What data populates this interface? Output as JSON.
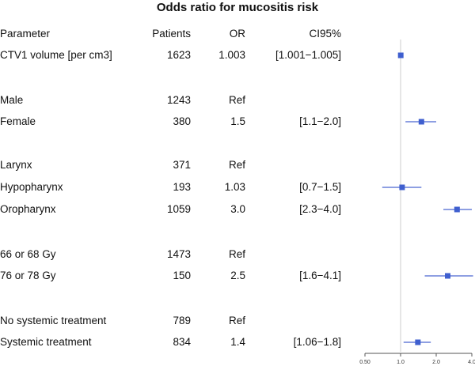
{
  "chart_data": {
    "type": "forest",
    "title": "Odds ratio for mucositis risk",
    "columns": [
      "Parameter",
      "Patients",
      "OR",
      "CI95%"
    ],
    "rows": [
      {
        "parameter": "CTV1 volume [per cm3]",
        "patients": "1623",
        "or": "1.003",
        "ci": "[1.001−1.005]",
        "estimate": 1.003,
        "lower": 1.001,
        "upper": 1.005
      },
      {
        "parameter": "Male",
        "patients": "1243",
        "or": "Ref",
        "ci": ""
      },
      {
        "parameter": "Female",
        "patients": "380",
        "or": "1.5",
        "ci": "[1.1−2.0]",
        "estimate": 1.5,
        "lower": 1.1,
        "upper": 2.0
      },
      {
        "parameter": "Larynx",
        "patients": "371",
        "or": "Ref",
        "ci": ""
      },
      {
        "parameter": "Hypopharynx",
        "patients": "193",
        "or": "1.03",
        "ci": "[0.7−1.5]",
        "estimate": 1.03,
        "lower": 0.7,
        "upper": 1.5
      },
      {
        "parameter": "Oropharynx",
        "patients": "1059",
        "or": "3.0",
        "ci": "[2.3−4.0]",
        "estimate": 3.0,
        "lower": 2.3,
        "upper": 4.0
      },
      {
        "parameter": "66 or 68 Gy",
        "patients": "1473",
        "or": "Ref",
        "ci": ""
      },
      {
        "parameter": "76 or 78 Gy",
        "patients": "150",
        "or": "2.5",
        "ci": "[1.6−4.1]",
        "estimate": 2.5,
        "lower": 1.6,
        "upper": 4.1
      },
      {
        "parameter": "No systemic treatment",
        "patients": "789",
        "or": "Ref",
        "ci": ""
      },
      {
        "parameter": "Systemic treatment",
        "patients": "834",
        "or": "1.4",
        "ci": "[1.06−1.8]",
        "estimate": 1.4,
        "lower": 1.06,
        "upper": 1.8
      }
    ],
    "x_scale": "log",
    "xlim": [
      0.5,
      4.0
    ],
    "x_ticks": [
      0.5,
      1.0,
      2.0,
      4.0
    ],
    "x_tick_labels": [
      "0.50",
      "1.0",
      "2.0",
      "4.0"
    ],
    "reference_line": 1.0,
    "colors": {
      "marker": "#3f5fcf",
      "ci_line": "#4a66d0",
      "ref_line": "#cccccc",
      "axis": "#555555"
    }
  }
}
